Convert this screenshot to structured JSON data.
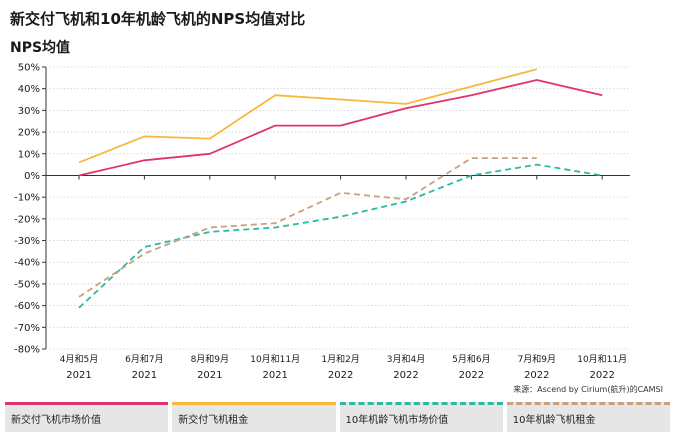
{
  "title": "新交付飞机和10年机龄飞机的NPS均值对比",
  "subtitle": "NPS均值",
  "source": "来源：Ascend by Cirium(航升)的CAMSI",
  "chart_data": {
    "type": "line",
    "ylim": [
      -80,
      50
    ],
    "y_ticks": [
      "50%",
      "40%",
      "30%",
      "20%",
      "10%",
      "0%",
      "-10%",
      "-20%",
      "-30%",
      "-40%",
      "-50%",
      "-60%",
      "-70%",
      "-80%"
    ],
    "categories": [
      [
        "4月和5月",
        "2021"
      ],
      [
        "6月和7月",
        "2021"
      ],
      [
        "8月和9月",
        "2021"
      ],
      [
        "10月和11月",
        "2021"
      ],
      [
        "1月和2月",
        "2022"
      ],
      [
        "3月和4月",
        "2022"
      ],
      [
        "5月和6月",
        "2022"
      ],
      [
        "7月和9月",
        "2022"
      ],
      [
        "10月和11月",
        "2022"
      ]
    ],
    "series": [
      {
        "name": "新交付飞机市场价值",
        "color": "#e0336a",
        "style": "solid",
        "values": [
          0,
          7,
          10,
          23,
          23,
          31,
          37,
          44,
          37
        ]
      },
      {
        "name": "新交付飞机租金",
        "color": "#f6b93c",
        "style": "solid",
        "values": [
          6,
          18,
          17,
          37,
          35,
          33,
          41,
          49,
          null
        ]
      },
      {
        "name": "10年机龄飞机市场价值",
        "color": "#2bb9a4",
        "style": "dashed",
        "values": [
          -61,
          -33,
          -26,
          -24,
          -19,
          -12,
          0,
          5,
          0
        ]
      },
      {
        "name": "10年机龄飞机租金",
        "color": "#c9a07e",
        "style": "dashed",
        "values": [
          -56,
          -36,
          -24,
          -22,
          -8,
          -11,
          8,
          8,
          null
        ]
      }
    ]
  }
}
